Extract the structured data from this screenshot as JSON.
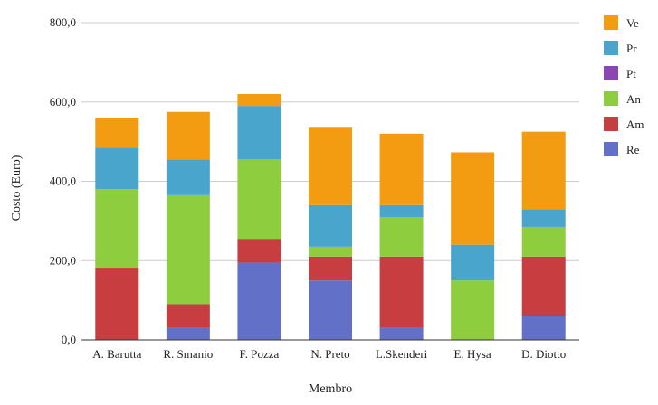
{
  "chart_data": {
    "type": "bar",
    "stacked": true,
    "xlabel": "Membro",
    "ylabel": "Costo (Euro)",
    "ylim": [
      0,
      800
    ],
    "yticks": [
      "0,0",
      "200,0",
      "400,0",
      "600,0",
      "800,0"
    ],
    "grid": true,
    "legend_position": "right",
    "categories": [
      "A. Barutta",
      "R. Smanio",
      "F. Pozza",
      "N. Preto",
      "L.Skenderi",
      "E. Hysa",
      "D. Diotto"
    ],
    "series": [
      {
        "name": "Re",
        "color": "#6270c8",
        "values": [
          0,
          30,
          195,
          150,
          30,
          0,
          60
        ]
      },
      {
        "name": "Am",
        "color": "#c83e40",
        "values": [
          180,
          60,
          60,
          60,
          180,
          0,
          150
        ]
      },
      {
        "name": "An",
        "color": "#8ecd3e",
        "values": [
          200,
          275,
          200,
          25,
          100,
          150,
          75
        ]
      },
      {
        "name": "Pt",
        "color": "#8a47b4",
        "values": [
          0,
          0,
          0,
          0,
          0,
          0,
          0
        ]
      },
      {
        "name": "Pr",
        "color": "#4aa5cd",
        "values": [
          105,
          90,
          135,
          105,
          30,
          90,
          45
        ]
      },
      {
        "name": "Ve",
        "color": "#f39c12",
        "values": [
          75,
          120,
          30,
          195,
          180,
          233,
          195
        ]
      }
    ],
    "legend_order": [
      "Ve",
      "Pr",
      "Pt",
      "An",
      "Am",
      "Re"
    ]
  }
}
